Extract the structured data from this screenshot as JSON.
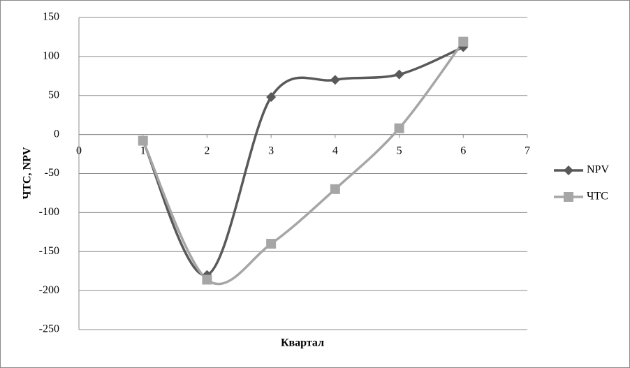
{
  "chart_data": {
    "type": "line",
    "x": [
      1,
      2,
      3,
      4,
      5,
      6
    ],
    "series": [
      {
        "name": "NPV",
        "color": "#595959",
        "marker": "diamond",
        "values": [
          -8,
          -180,
          48,
          70,
          77,
          112
        ]
      },
      {
        "name": "ЧТС",
        "color": "#a6a6a6",
        "marker": "square",
        "values": [
          -8,
          -186,
          -140,
          -70,
          8,
          119
        ]
      }
    ],
    "xlabel": "Квартал",
    "ylabel": "ЧТС, NPV",
    "xlim": [
      0,
      7
    ],
    "xticks": [
      0,
      1,
      2,
      3,
      4,
      5,
      6,
      7
    ],
    "ylim": [
      -250,
      150
    ],
    "yticks": [
      -250,
      -200,
      -150,
      -100,
      -50,
      0,
      50,
      100,
      150
    ],
    "grid": true,
    "smooth": true,
    "legend": "right"
  }
}
